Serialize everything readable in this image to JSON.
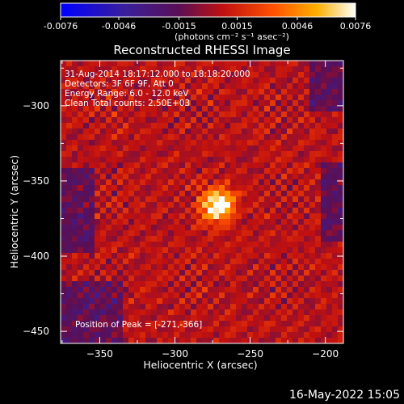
{
  "colorbar": {
    "tick_labels": [
      "-0.0076",
      "-0.0046",
      "-0.0015",
      "0.0015",
      "0.0046",
      "0.0076"
    ],
    "units_label": "(photons cm⁻² s⁻¹ asec⁻²)"
  },
  "title": "Reconstructed RHESSI Image",
  "info_lines": [
    "31-Aug-2014 18:17:12.000 to 18:18:20.000",
    "Detectors: 3F 6F 9F, Att 0",
    "Energy Range: 6.0 - 12.0 keV",
    "Clean     Total counts: 2.50E+03"
  ],
  "peak_label": "Position of Peak = [-271,-366]",
  "timestamp": "16-May-2022 15:05",
  "chart_data": {
    "type": "heatmap",
    "title": "Reconstructed RHESSI Image",
    "xlabel": "Heliocentric X (arcsec)",
    "ylabel": "Heliocentric Y (arcsec)",
    "xlim": [
      -376,
      -188
    ],
    "ylim": [
      -458,
      -270
    ],
    "x_ticks": [
      -350,
      -300,
      -250,
      -200
    ],
    "y_ticks": [
      -300,
      -350,
      -400,
      -450
    ],
    "color_range": [
      -0.0076,
      0.0076
    ],
    "colormap": "RHESSI red-temperature (blue-purple-red-orange-yellow-white)",
    "peak": {
      "x": -271,
      "y": -366
    }
  }
}
